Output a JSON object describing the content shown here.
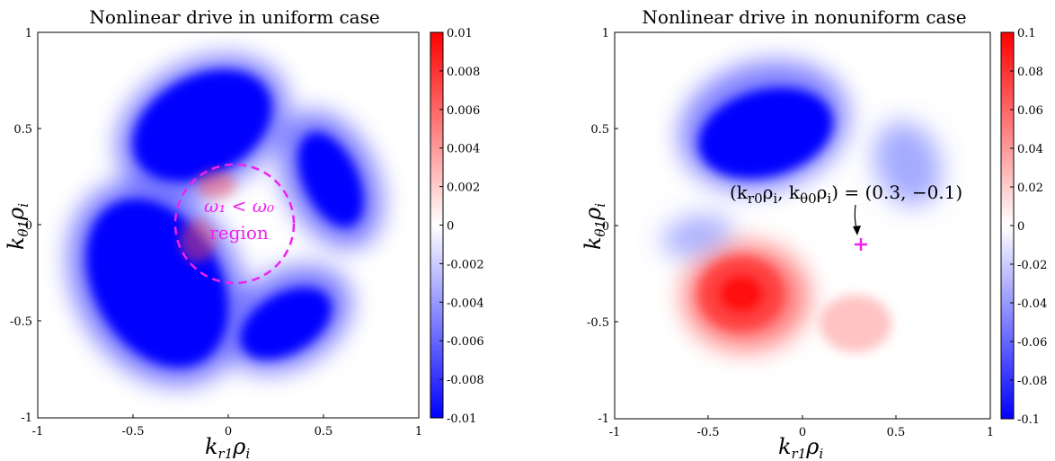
{
  "chart_data": [
    {
      "type": "heatmap",
      "title": "Nonlinear drive in uniform case",
      "xlabel": "k_{r1}ρ_i",
      "ylabel": "k_{θ1}ρ_i",
      "xlim": [
        -1,
        1
      ],
      "ylim": [
        -1,
        1
      ],
      "x_ticks": [
        "-1",
        "-0.5",
        "0",
        "0.5",
        "1"
      ],
      "y_ticks": [
        "-1",
        "-0.5",
        "0",
        "0.5",
        "1"
      ],
      "colorbar": {
        "range": [
          -0.01,
          0.01
        ],
        "ticks": [
          "0.01",
          "0.008",
          "0.006",
          "0.004",
          "0.002",
          "0",
          "-0.002",
          "-0.004",
          "-0.006",
          "-0.008",
          "-0.01"
        ],
        "colors": [
          "#0000ff",
          "#ffffff",
          "#ff0000"
        ]
      },
      "features": [
        {
          "sign": "negative",
          "cx": -0.25,
          "cy": 0.57,
          "level": -0.01
        },
        {
          "sign": "negative",
          "cx": -0.42,
          "cy": -0.32,
          "level": -0.01
        },
        {
          "sign": "negative",
          "cx": 0.52,
          "cy": 0.25,
          "level": -0.01
        },
        {
          "sign": "negative",
          "cx": 0.28,
          "cy": -0.52,
          "level": -0.01
        },
        {
          "sign": "positive",
          "cx": -0.1,
          "cy": 0.2,
          "level": 0.004
        },
        {
          "sign": "positive",
          "cx": -0.2,
          "cy": -0.1,
          "level": 0.004
        }
      ],
      "annotation": {
        "circle": {
          "cx": 0,
          "cy": 0,
          "r": 0.31
        },
        "text_line1": "ω₁ < ω₀",
        "text_line2": "region",
        "color": "#ee22ee"
      }
    },
    {
      "type": "heatmap",
      "title": "Nonlinear drive in nonuniform case",
      "xlabel": "k_{r1}ρ_i",
      "ylabel": "k_{θ1}ρ_i",
      "xlim": [
        -1,
        1
      ],
      "ylim": [
        -1,
        1
      ],
      "x_ticks": [
        "-1",
        "-0.5",
        "0",
        "0.5",
        "1"
      ],
      "y_ticks": [
        "-1",
        "-0.5",
        "0",
        "0.5",
        "1"
      ],
      "colorbar": {
        "range": [
          -0.1,
          0.1
        ],
        "ticks": [
          "0.1",
          "0.08",
          "0.06",
          "0.04",
          "0.02",
          "0",
          "-0.02",
          "-0.04",
          "-0.06",
          "-0.08",
          "-0.1"
        ],
        "colors": [
          "#0000ff",
          "#ffffff",
          "#ff0000"
        ]
      },
      "features": [
        {
          "sign": "negative",
          "cx": -0.2,
          "cy": 0.5,
          "level": -0.1
        },
        {
          "sign": "negative",
          "cx": 0.55,
          "cy": 0.32,
          "level": -0.03
        },
        {
          "sign": "negative",
          "cx": -0.62,
          "cy": -0.05,
          "level": -0.025
        },
        {
          "sign": "positive",
          "cx": -0.33,
          "cy": -0.37,
          "level": 0.09
        },
        {
          "sign": "positive",
          "cx": 0.25,
          "cy": -0.48,
          "level": 0.03
        }
      ],
      "annotation": {
        "label": "(k_{r0}ρ_i, k_{θ0}ρ_i) = (0.3, −0.1)",
        "point": {
          "x": 0.3,
          "y": -0.1
        },
        "color": "#ee22ee"
      }
    }
  ]
}
